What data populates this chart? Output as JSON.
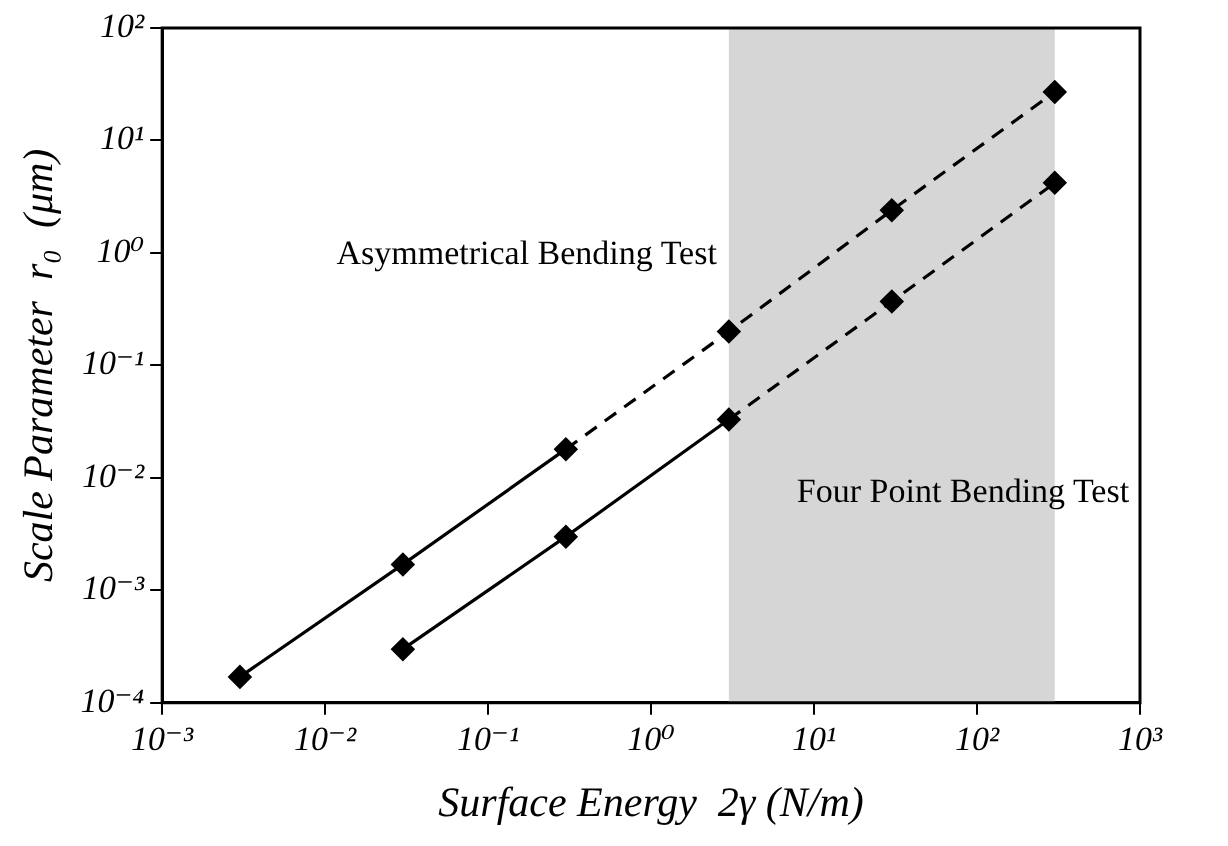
{
  "chart_data": {
    "type": "scatter",
    "xlabel": "Surface Energy  2γ (N/m)",
    "ylabel": "Scale Parameter  r₀  (μm)",
    "log": "xy",
    "grid": false,
    "legend": false,
    "marker": "diamond",
    "xlim": [
      0.001,
      1000
    ],
    "xticks": [
      {
        "value": 0.001,
        "label": "10⁻³"
      },
      {
        "value": 0.01,
        "label": "10⁻²"
      },
      {
        "value": 0.1,
        "label": "10⁻¹"
      },
      {
        "value": 1,
        "label": "10⁰"
      },
      {
        "value": 10,
        "label": "10¹"
      },
      {
        "value": 100,
        "label": "10²"
      },
      {
        "value": 1000,
        "label": "10³"
      }
    ],
    "ylim": [
      0.0001,
      100
    ],
    "yticks": [
      {
        "value": 0.0001,
        "label": "10⁻⁴"
      },
      {
        "value": 0.001,
        "label": "10⁻³"
      },
      {
        "value": 0.01,
        "label": "10⁻²"
      },
      {
        "value": 0.1,
        "label": "10⁻¹"
      },
      {
        "value": 1,
        "label": "10⁰"
      },
      {
        "value": 10,
        "label": "10¹"
      },
      {
        "value": 100,
        "label": "10²"
      }
    ],
    "bands": [
      {
        "axis": "x",
        "from": 3,
        "to": 300,
        "color": "#d6d6d6"
      }
    ],
    "series": [
      {
        "name": "Asymmetrical Bending Test",
        "type": "scatter",
        "color": "#000000",
        "x": [
          0.003,
          0.03,
          0.3,
          3,
          30,
          300
        ],
        "values": [
          0.00017,
          0.0017,
          0.018,
          0.2,
          2.4,
          27
        ]
      },
      {
        "type": "line",
        "color": "#000000",
        "marker": "none",
        "line_style": "solid",
        "x": [
          0.003,
          0.03,
          0.3
        ],
        "values": [
          0.00017,
          0.0017,
          0.018
        ]
      },
      {
        "type": "line",
        "color": "#000000",
        "marker": "none",
        "line_style": "dashed",
        "x": [
          0.3,
          3,
          30,
          300
        ],
        "values": [
          0.018,
          0.2,
          2.4,
          27
        ]
      },
      {
        "name": "Four Point Bending Test",
        "type": "scatter",
        "color": "#000000",
        "x": [
          0.03,
          0.3,
          3,
          30,
          300
        ],
        "values": [
          0.0003,
          0.003,
          0.033,
          0.37,
          4.2
        ]
      },
      {
        "type": "line",
        "color": "#000000",
        "marker": "none",
        "line_style": "solid",
        "x": [
          0.03,
          0.3,
          3
        ],
        "values": [
          0.0003,
          0.003,
          0.033
        ]
      },
      {
        "type": "line",
        "color": "#000000",
        "marker": "none",
        "line_style": "dashed",
        "x": [
          3,
          30,
          300
        ],
        "values": [
          0.033,
          0.37,
          4.2
        ]
      }
    ]
  }
}
